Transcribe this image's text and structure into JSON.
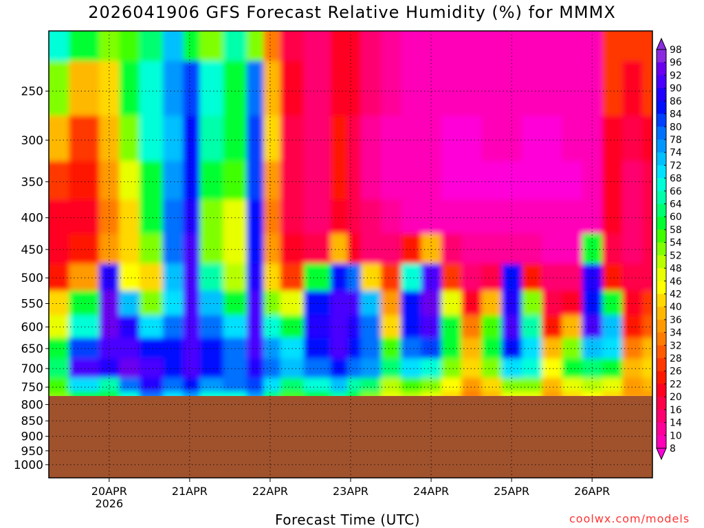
{
  "title": "2026041906 GFS Forecast Relative Humidity (%) for MMMX",
  "x_axis_title": "Forecast Time (UTC)",
  "credit": "coolwx.com/models",
  "chart_data": {
    "type": "heatmap",
    "title": "2026041906 GFS Forecast Relative Humidity (%) for MMMX",
    "xlabel": "Forecast Time (UTC)",
    "ylabel": "",
    "x_ticks": [
      {
        "label": "20APR",
        "sublabel": "2026",
        "hours": 18
      },
      {
        "label": "21APR",
        "sublabel": "",
        "hours": 42
      },
      {
        "label": "22APR",
        "sublabel": "",
        "hours": 66
      },
      {
        "label": "23APR",
        "sublabel": "",
        "hours": 90
      },
      {
        "label": "24APR",
        "sublabel": "",
        "hours": 114
      },
      {
        "label": "25APR",
        "sublabel": "",
        "hours": 138
      },
      {
        "label": "26APR",
        "sublabel": "",
        "hours": 162
      }
    ],
    "xlim_hours": [
      0,
      180
    ],
    "y_ticks": [
      250,
      300,
      350,
      400,
      450,
      500,
      550,
      600,
      650,
      700,
      750,
      800,
      850,
      900,
      950,
      1000
    ],
    "ylim": [
      200,
      1050
    ],
    "y_scale": "log-pressure",
    "y_inverted": true,
    "ground_level_hPa": 775,
    "colorbar_labels": [
      98,
      96,
      92,
      90,
      86,
      84,
      80,
      78,
      74,
      72,
      68,
      66,
      64,
      60,
      58,
      54,
      52,
      48,
      46,
      42,
      40,
      36,
      34,
      32,
      28,
      26,
      22,
      20,
      16,
      14,
      10,
      8
    ],
    "colorbar_colors": [
      "#8a2be2",
      "#6a00f0",
      "#4a00ff",
      "#2000ff",
      "#0010ff",
      "#0040ff",
      "#0070ff",
      "#0098ff",
      "#00c0ff",
      "#00e0ff",
      "#00ffd8",
      "#00ffaa",
      "#00ff70",
      "#00ff30",
      "#40ff00",
      "#80ff00",
      "#b8ff00",
      "#e8ff00",
      "#ffff00",
      "#ffd800",
      "#ffb800",
      "#ff9a00",
      "#ff7c00",
      "#ff5a00",
      "#ff3800",
      "#ff1800",
      "#ff0020",
      "#ff0048",
      "#ff0070",
      "#ff0098",
      "#ff00b8",
      "#ff00d8"
    ],
    "ground_color": "#a0522d",
    "grid": true,
    "legend": "colorbar-right",
    "times_hours": [
      0,
      12,
      18,
      24,
      30,
      38,
      42,
      48,
      56,
      62,
      66,
      72,
      80,
      88,
      90,
      96,
      102,
      108,
      114,
      120,
      126,
      132,
      138,
      144,
      150,
      156,
      162,
      168,
      174,
      180
    ],
    "levels_hPa": [
      200,
      250,
      300,
      350,
      400,
      450,
      500,
      550,
      600,
      650,
      700,
      750,
      775
    ],
    "rh_percent": [
      [
        70,
        60,
        55,
        58,
        65,
        74,
        60,
        55,
        66,
        55,
        35,
        20,
        18,
        22,
        25,
        18,
        15,
        12,
        12,
        10,
        10,
        10,
        12,
        10,
        10,
        10,
        12,
        30,
        28,
        30
      ],
      [
        55,
        40,
        45,
        60,
        70,
        78,
        85,
        70,
        60,
        80,
        40,
        22,
        18,
        25,
        22,
        16,
        14,
        12,
        10,
        10,
        10,
        10,
        10,
        10,
        10,
        10,
        12,
        28,
        24,
        28
      ],
      [
        40,
        30,
        40,
        55,
        68,
        76,
        86,
        66,
        60,
        84,
        42,
        20,
        16,
        26,
        20,
        14,
        12,
        10,
        10,
        8,
        8,
        10,
        10,
        8,
        8,
        10,
        12,
        22,
        20,
        22
      ],
      [
        28,
        26,
        36,
        48,
        62,
        78,
        88,
        62,
        58,
        84,
        36,
        20,
        16,
        26,
        20,
        14,
        12,
        10,
        10,
        8,
        8,
        8,
        8,
        8,
        8,
        8,
        12,
        22,
        18,
        20
      ],
      [
        22,
        24,
        34,
        44,
        60,
        80,
        90,
        56,
        50,
        86,
        34,
        20,
        18,
        24,
        20,
        16,
        14,
        12,
        12,
        10,
        10,
        10,
        10,
        10,
        10,
        10,
        12,
        22,
        18,
        20
      ],
      [
        22,
        26,
        38,
        42,
        56,
        82,
        92,
        54,
        48,
        88,
        36,
        22,
        20,
        40,
        22,
        18,
        16,
        26,
        40,
        16,
        14,
        14,
        14,
        14,
        12,
        12,
        60,
        20,
        16,
        20
      ],
      [
        26,
        36,
        90,
        46,
        44,
        74,
        92,
        66,
        52,
        90,
        42,
        30,
        62,
        88,
        80,
        44,
        28,
        70,
        94,
        30,
        18,
        20,
        86,
        26,
        16,
        18,
        90,
        26,
        20,
        20
      ],
      [
        44,
        60,
        96,
        74,
        54,
        72,
        92,
        76,
        62,
        92,
        56,
        48,
        86,
        92,
        92,
        74,
        36,
        86,
        96,
        50,
        24,
        40,
        90,
        54,
        20,
        24,
        88,
        60,
        24,
        28
      ],
      [
        50,
        70,
        96,
        90,
        72,
        80,
        94,
        82,
        72,
        94,
        70,
        62,
        90,
        94,
        90,
        80,
        44,
        88,
        92,
        62,
        34,
        58,
        92,
        66,
        26,
        40,
        92,
        74,
        26,
        32
      ],
      [
        60,
        84,
        94,
        94,
        88,
        86,
        94,
        86,
        80,
        92,
        78,
        72,
        88,
        92,
        88,
        82,
        58,
        80,
        84,
        62,
        40,
        62,
        86,
        72,
        40,
        56,
        76,
        72,
        34,
        40
      ],
      [
        64,
        94,
        90,
        96,
        94,
        86,
        92,
        88,
        82,
        90,
        80,
        74,
        82,
        88,
        82,
        78,
        64,
        72,
        70,
        56,
        42,
        56,
        72,
        68,
        46,
        60,
        64,
        62,
        40,
        44
      ],
      [
        58,
        72,
        66,
        82,
        90,
        80,
        86,
        78,
        80,
        84,
        72,
        64,
        70,
        76,
        66,
        64,
        52,
        58,
        56,
        46,
        36,
        44,
        56,
        54,
        40,
        48,
        52,
        50,
        38,
        40
      ],
      [
        54,
        62,
        60,
        70,
        80,
        72,
        78,
        70,
        70,
        78,
        64,
        58,
        62,
        66,
        60,
        56,
        48,
        52,
        50,
        42,
        34,
        40,
        50,
        48,
        36,
        44,
        46,
        44,
        36,
        38
      ]
    ]
  }
}
